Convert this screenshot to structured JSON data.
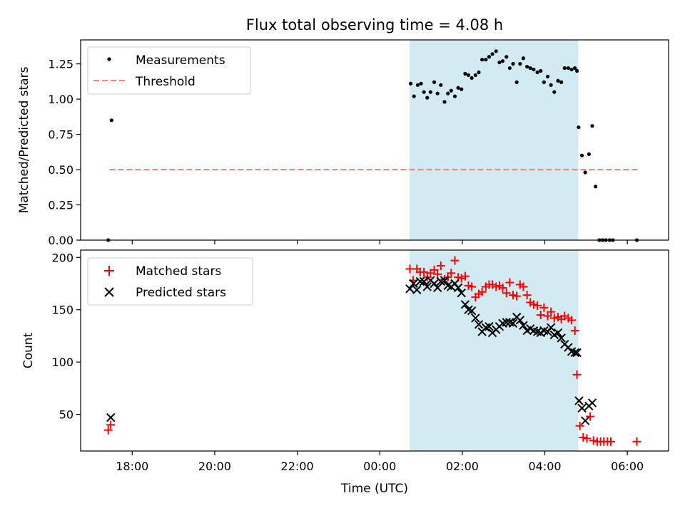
{
  "title": "Flux total observing time = 4.08 h",
  "colors": {
    "measurement": "#000000",
    "threshold": "#ff7f7f",
    "matched": "#ff0000",
    "predicted": "#000000",
    "shade": "#add8e6"
  },
  "chart_data": [
    {
      "type": "scatter",
      "panel": "top",
      "ylabel": "Matched/Predicted stars",
      "xlabel": "",
      "xlim_hours": [
        16.75,
        31.0
      ],
      "ylim": [
        0,
        1.42
      ],
      "yticks": [
        0.0,
        0.25,
        0.5,
        0.75,
        1.0,
        1.25
      ],
      "ytick_labels": [
        "0.00",
        "0.25",
        "0.50",
        "0.75",
        "1.00",
        "1.25"
      ],
      "xticks_hours": [
        18,
        20,
        22,
        24,
        26,
        28,
        30
      ],
      "shaded_span_hours": [
        24.72,
        28.81
      ],
      "legend": {
        "position": "top-left",
        "entries": [
          "Measurements",
          "Threshold"
        ]
      },
      "threshold": {
        "name": "Threshold",
        "y": 0.5,
        "x_range_hours": [
          17.45,
          30.25
        ]
      },
      "series": [
        {
          "name": "Measurements",
          "points": [
            [
              17.42,
              0.0
            ],
            [
              17.5,
              0.85
            ],
            [
              24.75,
              1.11
            ],
            [
              24.83,
              1.02
            ],
            [
              24.92,
              1.1
            ],
            [
              25.0,
              1.11
            ],
            [
              25.07,
              1.05
            ],
            [
              25.15,
              1.01
            ],
            [
              25.23,
              1.05
            ],
            [
              25.32,
              1.12
            ],
            [
              25.4,
              1.04
            ],
            [
              25.48,
              1.1
            ],
            [
              25.57,
              0.98
            ],
            [
              25.65,
              1.04
            ],
            [
              25.73,
              1.06
            ],
            [
              25.82,
              1.02
            ],
            [
              25.9,
              1.08
            ],
            [
              25.98,
              1.07
            ],
            [
              26.07,
              1.18
            ],
            [
              26.15,
              1.17
            ],
            [
              26.23,
              1.15
            ],
            [
              26.32,
              1.17
            ],
            [
              26.4,
              1.19
            ],
            [
              26.48,
              1.28
            ],
            [
              26.57,
              1.28
            ],
            [
              26.65,
              1.3
            ],
            [
              26.73,
              1.32
            ],
            [
              26.82,
              1.34
            ],
            [
              26.9,
              1.26
            ],
            [
              26.98,
              1.27
            ],
            [
              27.07,
              1.3
            ],
            [
              27.15,
              1.22
            ],
            [
              27.23,
              1.25
            ],
            [
              27.32,
              1.12
            ],
            [
              27.4,
              1.25
            ],
            [
              27.48,
              1.29
            ],
            [
              27.57,
              1.23
            ],
            [
              27.65,
              1.22
            ],
            [
              27.73,
              1.21
            ],
            [
              27.82,
              1.19
            ],
            [
              27.9,
              1.2
            ],
            [
              27.98,
              1.12
            ],
            [
              28.07,
              1.16
            ],
            [
              28.15,
              1.1
            ],
            [
              28.23,
              1.05
            ],
            [
              28.32,
              1.13
            ],
            [
              28.4,
              1.12
            ],
            [
              28.48,
              1.22
            ],
            [
              28.57,
              1.22
            ],
            [
              28.65,
              1.21
            ],
            [
              28.73,
              1.22
            ],
            [
              28.78,
              1.2
            ],
            [
              28.82,
              0.8
            ],
            [
              28.9,
              0.6
            ],
            [
              28.98,
              0.48
            ],
            [
              29.07,
              0.61
            ],
            [
              29.15,
              0.81
            ],
            [
              29.23,
              0.38
            ],
            [
              29.32,
              0.0
            ],
            [
              29.4,
              0.0
            ],
            [
              29.48,
              0.0
            ],
            [
              29.57,
              0.0
            ],
            [
              29.65,
              0.0
            ],
            [
              30.23,
              0.0
            ]
          ]
        }
      ]
    },
    {
      "type": "scatter",
      "panel": "bottom",
      "xlabel": "Time (UTC)",
      "ylabel": "Count",
      "xlim_hours": [
        16.75,
        31.0
      ],
      "ylim": [
        15,
        207
      ],
      "yticks": [
        50,
        100,
        150,
        200
      ],
      "ytick_labels": [
        "50",
        "100",
        "150",
        "200"
      ],
      "xticks_hours": [
        18,
        20,
        22,
        24,
        26,
        28,
        30
      ],
      "xtick_labels": [
        "18:00",
        "20:00",
        "22:00",
        "00:00",
        "02:00",
        "04:00",
        "06:00"
      ],
      "shaded_span_hours": [
        24.72,
        28.81
      ],
      "legend": {
        "position": "top-left",
        "entries": [
          "Matched stars",
          "Predicted stars"
        ]
      },
      "series": [
        {
          "name": "Matched stars",
          "marker": "plus",
          "points": [
            [
              17.42,
              35
            ],
            [
              17.48,
              40
            ],
            [
              24.73,
              189
            ],
            [
              24.81,
              178
            ],
            [
              24.9,
              189
            ],
            [
              24.98,
              186
            ],
            [
              25.07,
              186
            ],
            [
              25.15,
              181
            ],
            [
              25.23,
              185
            ],
            [
              25.32,
              188
            ],
            [
              25.4,
              184
            ],
            [
              25.48,
              192
            ],
            [
              25.57,
              179
            ],
            [
              25.65,
              181
            ],
            [
              25.73,
              185
            ],
            [
              25.82,
              197
            ],
            [
              25.9,
              181
            ],
            [
              25.98,
              180
            ],
            [
              26.07,
              182
            ],
            [
              26.15,
              173
            ],
            [
              26.23,
              172
            ],
            [
              26.32,
              162
            ],
            [
              26.4,
              165
            ],
            [
              26.48,
              167
            ],
            [
              26.57,
              172
            ],
            [
              26.65,
              174
            ],
            [
              26.73,
              174
            ],
            [
              26.82,
              172
            ],
            [
              26.9,
              173
            ],
            [
              26.98,
              171
            ],
            [
              27.07,
              166
            ],
            [
              27.15,
              176
            ],
            [
              27.23,
              164
            ],
            [
              27.32,
              163
            ],
            [
              27.4,
              174
            ],
            [
              27.48,
              172
            ],
            [
              27.57,
              164
            ],
            [
              27.65,
              157
            ],
            [
              27.73,
              155
            ],
            [
              27.82,
              154
            ],
            [
              27.9,
              145
            ],
            [
              27.98,
              152
            ],
            [
              28.07,
              144
            ],
            [
              28.15,
              148
            ],
            [
              28.23,
              142
            ],
            [
              28.32,
              143
            ],
            [
              28.4,
              141
            ],
            [
              28.48,
              144
            ],
            [
              28.57,
              142
            ],
            [
              28.65,
              140
            ],
            [
              28.73,
              130
            ],
            [
              28.78,
              88
            ],
            [
              28.85,
              39
            ],
            [
              28.93,
              28
            ],
            [
              29.02,
              27
            ],
            [
              29.1,
              48
            ],
            [
              29.18,
              25
            ],
            [
              29.27,
              24
            ],
            [
              29.35,
              24
            ],
            [
              29.43,
              24
            ],
            [
              29.52,
              24
            ],
            [
              29.6,
              24
            ],
            [
              30.23,
              24
            ]
          ]
        },
        {
          "name": "Predicted stars",
          "marker": "x",
          "points": [
            [
              17.48,
              47
            ],
            [
              24.73,
              170
            ],
            [
              24.82,
              175
            ],
            [
              24.9,
              169
            ],
            [
              24.98,
              177
            ],
            [
              25.07,
              177
            ],
            [
              25.15,
              172
            ],
            [
              25.23,
              178
            ],
            [
              25.32,
              175
            ],
            [
              25.4,
              171
            ],
            [
              25.48,
              177
            ],
            [
              25.57,
              178
            ],
            [
              25.65,
              173
            ],
            [
              25.73,
              172
            ],
            [
              25.82,
              175
            ],
            [
              25.9,
              171
            ],
            [
              25.98,
              166
            ],
            [
              26.07,
              155
            ],
            [
              26.15,
              150
            ],
            [
              26.23,
              149
            ],
            [
              26.32,
              142
            ],
            [
              26.4,
              136
            ],
            [
              26.48,
              129
            ],
            [
              26.57,
              133
            ],
            [
              26.65,
              134
            ],
            [
              26.73,
              128
            ],
            [
              26.82,
              131
            ],
            [
              26.9,
              134
            ],
            [
              26.98,
              137
            ],
            [
              27.07,
              138
            ],
            [
              27.15,
              138
            ],
            [
              27.23,
              137
            ],
            [
              27.32,
              143
            ],
            [
              27.4,
              140
            ],
            [
              27.48,
              135
            ],
            [
              27.57,
              130
            ],
            [
              27.65,
              132
            ],
            [
              27.73,
              130
            ],
            [
              27.82,
              129
            ],
            [
              27.9,
              128
            ],
            [
              27.98,
              130
            ],
            [
              28.07,
              129
            ],
            [
              28.15,
              133
            ],
            [
              28.23,
              126
            ],
            [
              28.32,
              128
            ],
            [
              28.4,
              123
            ],
            [
              28.48,
              117
            ],
            [
              28.57,
              114
            ],
            [
              28.65,
              110
            ],
            [
              28.73,
              109
            ],
            [
              28.78,
              109
            ],
            [
              28.83,
              63
            ],
            [
              28.9,
              56
            ],
            [
              28.98,
              44
            ],
            [
              29.07,
              58
            ],
            [
              29.15,
              61
            ]
          ]
        }
      ]
    }
  ]
}
